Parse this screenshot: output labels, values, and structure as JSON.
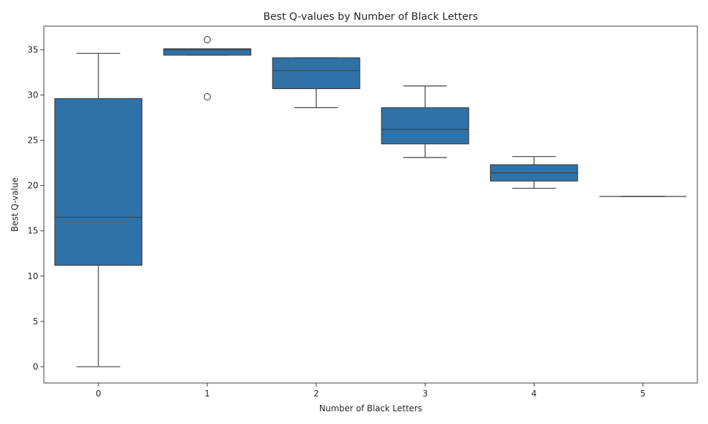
{
  "chart_data": {
    "type": "box",
    "title": "Best Q-values by Number of Black Letters",
    "xlabel": "Number of Black Letters",
    "ylabel": "Best Q-value",
    "categories": [
      "0",
      "1",
      "2",
      "3",
      "4",
      "5"
    ],
    "ylim": [
      -1.8,
      37.6
    ],
    "yticks": [
      0,
      5,
      10,
      15,
      20,
      25,
      30,
      35
    ],
    "grid": false,
    "box_color": "#2f72a8",
    "line_color": "#3f3f3f",
    "boxes": [
      {
        "category": "0",
        "whisker_low": 0.0,
        "q1": 11.2,
        "median": 16.5,
        "q3": 29.6,
        "whisker_high": 34.6,
        "outliers": []
      },
      {
        "category": "1",
        "whisker_low": 34.4,
        "q1": 34.4,
        "median": 35.0,
        "q3": 35.1,
        "whisker_high": 35.1,
        "outliers": [
          36.1,
          29.8
        ]
      },
      {
        "category": "2",
        "whisker_low": 28.6,
        "q1": 30.7,
        "median": 32.7,
        "q3": 34.1,
        "whisker_high": 34.1,
        "outliers": []
      },
      {
        "category": "3",
        "whisker_low": 23.1,
        "q1": 24.6,
        "median": 26.2,
        "q3": 28.6,
        "whisker_high": 31.0,
        "outliers": []
      },
      {
        "category": "4",
        "whisker_low": 19.7,
        "q1": 20.5,
        "median": 21.4,
        "q3": 22.3,
        "whisker_high": 23.2,
        "outliers": []
      },
      {
        "category": "5",
        "whisker_low": 18.8,
        "q1": 18.8,
        "median": 18.8,
        "q3": 18.8,
        "whisker_high": 18.8,
        "outliers": []
      }
    ]
  }
}
